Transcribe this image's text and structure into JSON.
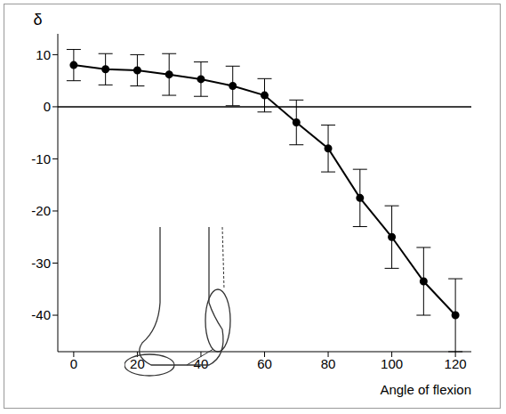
{
  "chart_data": {
    "type": "line",
    "y_label": "δ",
    "x_label": "Angle of flexion",
    "x": [
      0,
      10,
      20,
      30,
      40,
      50,
      60,
      70,
      80,
      90,
      100,
      110,
      120
    ],
    "series": [
      {
        "name": "δ",
        "color": "#000000",
        "marker": "circle",
        "line_style": "solid",
        "values": [
          8,
          7.2,
          7,
          6.2,
          5.3,
          4,
          2.2,
          -3,
          -8,
          -17.5,
          -25,
          -33.5,
          -40
        ],
        "error": [
          3,
          3,
          3,
          4,
          3.3,
          3.8,
          3.2,
          4.3,
          4.5,
          5.5,
          6,
          6.5,
          7
        ]
      }
    ],
    "xlim": [
      -5,
      125
    ],
    "xticks": [
      0,
      20,
      40,
      60,
      80,
      100,
      120
    ],
    "ylim": [
      -47,
      14
    ],
    "yticks": [
      10,
      0,
      -10,
      -20,
      -30,
      -40
    ],
    "grid": false
  }
}
